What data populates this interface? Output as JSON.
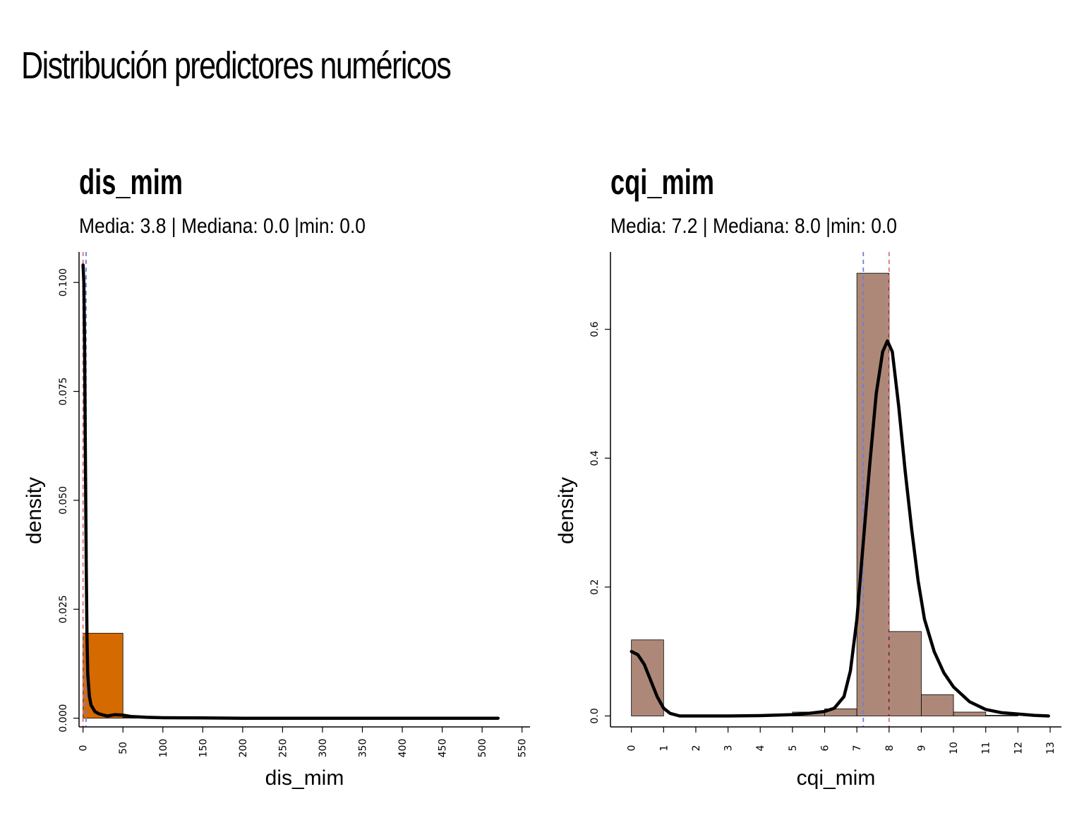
{
  "title": "Distribución predictores numéricos",
  "colors": {
    "mean_line": "#6a7fdb",
    "median_line": "#e0707a",
    "density": "#000000"
  },
  "chart_data": [
    {
      "type": "histogram",
      "title": "dis_mim",
      "subtitle": "Media: 3.8 | Mediana: 0.0 |min: 0.0",
      "xlabel": "dis_mim",
      "ylabel": "density",
      "xlim": [
        -5,
        560
      ],
      "ylim": [
        -0.002,
        0.107
      ],
      "xticks": [
        0,
        50,
        100,
        150,
        200,
        250,
        300,
        350,
        400,
        450,
        500,
        550
      ],
      "yticks": [
        0.0,
        0.025,
        0.05,
        0.075,
        0.1
      ],
      "ytick_labels": [
        "0.000",
        "0.025",
        "0.050",
        "0.075",
        "0.100"
      ],
      "bar_color": "#d56a00",
      "bins": [
        {
          "x0": 0,
          "x1": 50,
          "density": 0.0195
        },
        {
          "x0": 50,
          "x1": 100,
          "density": 0.0002
        },
        {
          "x0": 100,
          "x1": 150,
          "density": 3e-05
        },
        {
          "x0": 150,
          "x1": 550,
          "density": 0.0
        }
      ],
      "density_curve": [
        [
          0,
          0.104
        ],
        [
          1,
          0.1
        ],
        [
          2,
          0.085
        ],
        [
          3,
          0.06
        ],
        [
          4,
          0.035
        ],
        [
          5,
          0.018
        ],
        [
          6,
          0.01
        ],
        [
          8,
          0.005
        ],
        [
          10,
          0.003
        ],
        [
          15,
          0.0015
        ],
        [
          20,
          0.001
        ],
        [
          30,
          0.0005
        ],
        [
          40,
          0.0008
        ],
        [
          50,
          0.0007
        ],
        [
          60,
          0.0004
        ],
        [
          80,
          0.0002
        ],
        [
          100,
          0.0001
        ],
        [
          150,
          5e-05
        ],
        [
          200,
          0.0
        ],
        [
          300,
          0.0
        ],
        [
          400,
          0.0
        ],
        [
          520,
          0.0
        ]
      ],
      "mean": 3.8,
      "median": 0.0
    },
    {
      "type": "histogram",
      "title": "cqi_mim",
      "subtitle": "Media: 7.2 | Mediana: 8.0 |min: 0.0",
      "xlabel": "cqi_mim",
      "ylabel": "density",
      "xlim": [
        -0.65,
        13.35
      ],
      "ylim": [
        -0.017,
        0.72
      ],
      "xticks": [
        0,
        1,
        2,
        3,
        4,
        5,
        6,
        7,
        8,
        9,
        10,
        11,
        12,
        13
      ],
      "yticks": [
        0.0,
        0.2,
        0.4,
        0.6
      ],
      "ytick_labels": [
        "0.0",
        "0.2",
        "0.4",
        "0.6"
      ],
      "bar_color": "#ad8878",
      "bins": [
        {
          "x0": 0,
          "x1": 1,
          "density": 0.118
        },
        {
          "x0": 1,
          "x1": 2,
          "density": 0.0
        },
        {
          "x0": 2,
          "x1": 3,
          "density": 0.0
        },
        {
          "x0": 3,
          "x1": 4,
          "density": 0.0
        },
        {
          "x0": 4,
          "x1": 5,
          "density": 0.0
        },
        {
          "x0": 5,
          "x1": 6,
          "density": 0.006
        },
        {
          "x0": 6,
          "x1": 7,
          "density": 0.011
        },
        {
          "x0": 7,
          "x1": 8,
          "density": 0.687
        },
        {
          "x0": 8,
          "x1": 9,
          "density": 0.131
        },
        {
          "x0": 9,
          "x1": 10,
          "density": 0.033
        },
        {
          "x0": 10,
          "x1": 11,
          "density": 0.006
        },
        {
          "x0": 11,
          "x1": 12,
          "density": 0.001
        },
        {
          "x0": 12,
          "x1": 13,
          "density": 0.0
        }
      ],
      "density_curve": [
        [
          0,
          0.1
        ],
        [
          0.2,
          0.095
        ],
        [
          0.4,
          0.08
        ],
        [
          0.6,
          0.055
        ],
        [
          0.8,
          0.03
        ],
        [
          1.0,
          0.012
        ],
        [
          1.2,
          0.004
        ],
        [
          1.5,
          0.0
        ],
        [
          2,
          0.0
        ],
        [
          3,
          0.0
        ],
        [
          4,
          0.0005
        ],
        [
          5,
          0.002
        ],
        [
          5.5,
          0.004
        ],
        [
          6,
          0.007
        ],
        [
          6.3,
          0.012
        ],
        [
          6.6,
          0.03
        ],
        [
          6.8,
          0.07
        ],
        [
          7.0,
          0.15
        ],
        [
          7.2,
          0.27
        ],
        [
          7.4,
          0.39
        ],
        [
          7.6,
          0.5
        ],
        [
          7.8,
          0.565
        ],
        [
          7.95,
          0.582
        ],
        [
          8.1,
          0.565
        ],
        [
          8.3,
          0.48
        ],
        [
          8.5,
          0.38
        ],
        [
          8.7,
          0.29
        ],
        [
          8.9,
          0.21
        ],
        [
          9.1,
          0.15
        ],
        [
          9.4,
          0.1
        ],
        [
          9.7,
          0.067
        ],
        [
          10,
          0.045
        ],
        [
          10.5,
          0.022
        ],
        [
          11,
          0.01
        ],
        [
          11.5,
          0.005
        ],
        [
          12,
          0.003
        ],
        [
          12.5,
          0.001
        ],
        [
          12.95,
          0.0
        ]
      ],
      "mean": 7.2,
      "median": 8.0
    }
  ]
}
